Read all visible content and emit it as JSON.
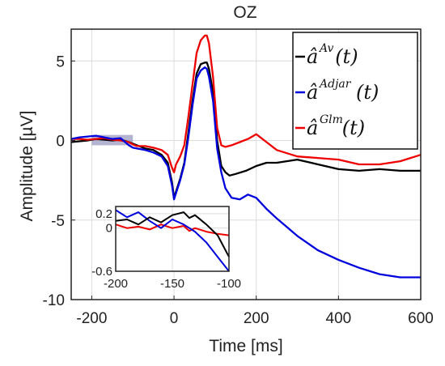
{
  "chart_data": {
    "type": "line",
    "title": "OZ",
    "xlabel": "Time [ms]",
    "ylabel": "Amplitude [µV]",
    "xlim": [
      -250,
      600
    ],
    "ylim": [
      -10,
      7
    ],
    "x_ticks": [
      -200,
      0,
      200,
      400,
      600
    ],
    "y_ticks": [
      -10,
      -5,
      0,
      5
    ],
    "grid": true,
    "legend_position": "top-right",
    "legend": [
      {
        "base": "â",
        "sup": "Av",
        "tail": "(t)",
        "color": "#000000"
      },
      {
        "base": "â",
        "sup": "Adjar",
        "tail": "(t)",
        "color": "#0000dd"
      },
      {
        "base": "â",
        "sup": "Glm",
        "tail": "(t)",
        "color": "#ee0000"
      }
    ],
    "highlight_region": {
      "x": [
        -200,
        -100
      ],
      "y": [
        -0.3,
        0.35
      ],
      "color": "#7777aa"
    },
    "series": [
      {
        "color": "#000000",
        "x": [
          -250,
          -230,
          -210,
          -190,
          -170,
          -150,
          -130,
          -110,
          -100,
          -90,
          -70,
          -50,
          -30,
          -15,
          -5,
          0,
          5,
          15,
          25,
          35,
          45,
          55,
          65,
          75,
          80,
          85,
          95,
          105,
          115,
          125,
          135,
          150,
          175,
          200,
          225,
          250,
          300,
          350,
          400,
          450,
          500,
          550,
          600
        ],
        "y": [
          -0.1,
          -0.05,
          0,
          0.1,
          0.05,
          0,
          0.05,
          -0.1,
          -0.2,
          -0.3,
          -0.5,
          -0.6,
          -0.9,
          -1.4,
          -2.6,
          -3.6,
          -3.2,
          -2.4,
          -1.4,
          0.5,
          2.5,
          4.2,
          4.8,
          4.9,
          4.9,
          4.5,
          3.0,
          0,
          -1.6,
          -2.0,
          -2.2,
          -2.1,
          -1.9,
          -1.6,
          -1.4,
          -1.4,
          -1.2,
          -1.5,
          -1.8,
          -1.9,
          -1.8,
          -1.9,
          -1.9
        ]
      },
      {
        "color": "#0000dd",
        "x": [
          -250,
          -230,
          -210,
          -190,
          -170,
          -150,
          -130,
          -110,
          -100,
          -90,
          -70,
          -50,
          -30,
          -15,
          -5,
          0,
          5,
          15,
          25,
          35,
          45,
          55,
          65,
          75,
          80,
          85,
          95,
          105,
          115,
          125,
          140,
          160,
          180,
          200,
          225,
          250,
          300,
          350,
          400,
          450,
          500,
          550,
          600
        ],
        "y": [
          0.1,
          0.2,
          0.25,
          0.3,
          0.2,
          0.1,
          0.15,
          -0.3,
          -0.45,
          -0.5,
          -0.6,
          -0.75,
          -1.0,
          -1.6,
          -2.8,
          -3.7,
          -3.3,
          -2.5,
          -1.5,
          0.2,
          2.2,
          3.9,
          4.4,
          4.6,
          4.5,
          4.0,
          2.5,
          -0.5,
          -2.0,
          -3.0,
          -3.6,
          -3.7,
          -3.4,
          -3.6,
          -4.3,
          -4.9,
          -6.0,
          -6.9,
          -7.5,
          -8.0,
          -8.4,
          -8.6,
          -8.6
        ]
      },
      {
        "color": "#ee0000",
        "x": [
          -250,
          -230,
          -210,
          -190,
          -170,
          -150,
          -130,
          -110,
          -100,
          -90,
          -70,
          -50,
          -30,
          -15,
          -5,
          0,
          5,
          15,
          25,
          35,
          45,
          55,
          65,
          75,
          80,
          85,
          95,
          105,
          115,
          125,
          140,
          160,
          180,
          200,
          225,
          250,
          300,
          350,
          400,
          450,
          500,
          550,
          600
        ],
        "y": [
          0.1,
          0.1,
          0.05,
          0.1,
          0.15,
          0.05,
          0,
          -0.1,
          -0.25,
          -0.35,
          -0.35,
          -0.45,
          -0.6,
          -0.9,
          -1.7,
          -2.0,
          -1.5,
          -1.0,
          -0.3,
          1.5,
          3.5,
          5.5,
          6.3,
          6.6,
          6.6,
          6.1,
          4.0,
          0.8,
          -0.3,
          -0.4,
          -0.3,
          -0.1,
          0.1,
          0.4,
          -0.1,
          -0.6,
          -1.0,
          -1.1,
          -1.2,
          -1.5,
          -1.5,
          -1.3,
          -0.9
        ]
      }
    ],
    "inset": {
      "xlim": [
        -200,
        -100
      ],
      "ylim": [
        -0.6,
        0.3
      ],
      "x_ticks": [
        -200,
        -150,
        -100
      ],
      "y_ticks": [
        0.2,
        0,
        -0.6
      ],
      "series": [
        {
          "color": "#000000",
          "x": [
            -200,
            -190,
            -180,
            -170,
            -160,
            -150,
            -140,
            -135,
            -130,
            -120,
            -110,
            -100
          ],
          "y": [
            0.1,
            0.12,
            0.05,
            0.15,
            0.08,
            0.18,
            0.22,
            0.14,
            0.18,
            0.05,
            -0.1,
            -0.4
          ]
        },
        {
          "color": "#0000dd",
          "x": [
            -200,
            -190,
            -180,
            -170,
            -160,
            -150,
            -140,
            -135,
            -130,
            -120,
            -110,
            -100
          ],
          "y": [
            0.25,
            0.15,
            0.22,
            0.1,
            0.0,
            0.12,
            0.05,
            0.0,
            -0.05,
            -0.2,
            -0.4,
            -0.6
          ]
        },
        {
          "color": "#ee0000",
          "x": [
            -200,
            -190,
            -180,
            -170,
            -160,
            -150,
            -140,
            -135,
            -130,
            -120,
            -110,
            -100
          ],
          "y": [
            0.05,
            0.0,
            0.02,
            -0.02,
            0.05,
            0.0,
            0.03,
            -0.04,
            0.0,
            -0.05,
            -0.08,
            -0.1
          ]
        }
      ]
    }
  }
}
